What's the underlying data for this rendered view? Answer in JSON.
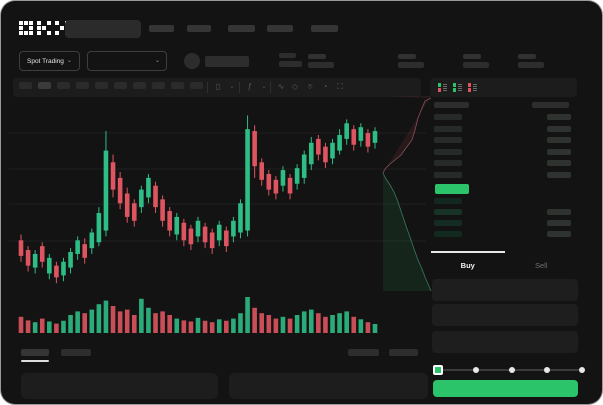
{
  "colors": {
    "accent_green": "#2bc46a",
    "candle_up": "#2ebd85",
    "candle_down": "#dd5560",
    "depth_ask_line": "#8a5156",
    "depth_bid_line": "#3c7a60",
    "skeleton": "#2c2d2c"
  },
  "header": {
    "logo_text": "OKX",
    "logo_blocks": [
      [
        [
          1,
          1,
          1
        ],
        [
          1,
          0,
          1
        ],
        [
          1,
          1,
          1
        ]
      ],
      [
        [
          1,
          0,
          1
        ],
        [
          1,
          1,
          0
        ],
        [
          1,
          0,
          1
        ]
      ],
      [
        [
          1,
          0,
          1
        ],
        [
          0,
          1,
          0
        ],
        [
          1,
          0,
          1
        ]
      ]
    ],
    "nav_placeholder_count": 5
  },
  "market_bar": {
    "pair_selector_label": "Spot Trading",
    "pair_selector_chevron": "⌄",
    "dropdown_chevron": "⌄",
    "stat_placeholder_count": 4
  },
  "toolbar": {
    "timeframe_slot_count": 10,
    "icons": {
      "candles": "▯",
      "chevron": "⌄",
      "indicators": "ƒ",
      "line_tool": "∿",
      "draw_tool": "◇",
      "camera": "⌾",
      "settings": "◔",
      "fullscreen": "⛶"
    }
  },
  "chart_data": {
    "type": "candlestick",
    "title": "",
    "xlabel": "",
    "ylabel": "",
    "price_scale": [
      0,
      100
    ],
    "grid": true,
    "gridlines_y_local": [
      37,
      73,
      108,
      145
    ],
    "up_color": "#2ebd85",
    "down_color": "#dd5560",
    "candles_ohlc": [
      [
        26,
        29,
        15,
        18
      ],
      [
        21,
        23,
        10,
        13
      ],
      [
        12,
        21,
        9,
        19
      ],
      [
        23,
        25,
        12,
        15
      ],
      [
        9,
        19,
        6,
        17
      ],
      [
        13,
        15,
        4,
        7
      ],
      [
        8,
        17,
        5,
        15
      ],
      [
        12,
        22,
        9,
        20
      ],
      [
        19,
        28,
        16,
        26
      ],
      [
        24,
        27,
        14,
        17
      ],
      [
        22,
        32,
        19,
        30
      ],
      [
        25,
        43,
        23,
        40
      ],
      [
        31,
        82,
        28,
        72
      ],
      [
        66,
        70,
        48,
        52
      ],
      [
        58,
        61,
        42,
        45
      ],
      [
        50,
        53,
        35,
        38
      ],
      [
        45,
        47,
        33,
        36
      ],
      [
        43,
        54,
        40,
        52
      ],
      [
        48,
        60,
        45,
        58
      ],
      [
        54,
        56,
        40,
        43
      ],
      [
        47,
        49,
        33,
        36
      ],
      [
        41,
        43,
        28,
        31
      ],
      [
        29,
        40,
        26,
        38
      ],
      [
        35,
        37,
        23,
        26
      ],
      [
        32,
        34,
        21,
        24
      ],
      [
        28,
        38,
        25,
        36
      ],
      [
        33,
        35,
        22,
        25
      ],
      [
        30,
        32,
        19,
        22
      ],
      [
        26,
        36,
        23,
        34
      ],
      [
        31,
        33,
        20,
        23
      ],
      [
        28,
        38,
        25,
        36
      ],
      [
        30,
        47,
        27,
        45
      ],
      [
        31,
        90,
        28,
        83
      ],
      [
        82,
        85,
        58,
        64
      ],
      [
        66,
        68,
        54,
        57
      ],
      [
        60,
        62,
        49,
        52
      ],
      [
        57,
        59,
        47,
        50
      ],
      [
        54,
        64,
        51,
        62
      ],
      [
        58,
        60,
        47,
        50
      ],
      [
        55,
        65,
        52,
        63
      ],
      [
        58,
        72,
        55,
        70
      ],
      [
        65,
        79,
        62,
        76
      ],
      [
        78,
        80,
        67,
        70
      ],
      [
        74,
        76,
        63,
        66
      ],
      [
        68,
        78,
        65,
        76
      ],
      [
        72,
        83,
        70,
        80
      ],
      [
        78,
        88,
        75,
        86
      ],
      [
        83,
        85,
        72,
        75
      ],
      [
        77,
        86,
        74,
        84
      ],
      [
        81,
        83,
        71,
        74
      ],
      [
        76,
        84,
        73,
        82
      ]
    ],
    "volume": [
      45,
      35,
      30,
      40,
      32,
      26,
      34,
      50,
      60,
      55,
      65,
      80,
      90,
      75,
      60,
      65,
      50,
      95,
      70,
      55,
      60,
      50,
      40,
      35,
      32,
      42,
      34,
      30,
      38,
      34,
      40,
      55,
      100,
      70,
      55,
      50,
      40,
      45,
      40,
      50,
      60,
      65,
      55,
      45,
      50,
      55,
      60,
      45,
      38,
      30,
      25
    ],
    "depth": {
      "ask_points": [
        [
          49,
          2
        ],
        [
          43,
          5
        ],
        [
          40,
          12
        ],
        [
          36,
          22
        ],
        [
          33,
          34
        ],
        [
          30,
          44
        ],
        [
          24,
          52
        ],
        [
          19,
          59
        ],
        [
          13,
          64
        ],
        [
          8,
          68
        ],
        [
          3,
          73
        ],
        [
          1,
          77
        ]
      ],
      "bid_points": [
        [
          1,
          77
        ],
        [
          4,
          83
        ],
        [
          8,
          89
        ],
        [
          12,
          96
        ],
        [
          16,
          106
        ],
        [
          20,
          118
        ],
        [
          24,
          130
        ],
        [
          28,
          141
        ],
        [
          32,
          153
        ],
        [
          36,
          164
        ],
        [
          40,
          173
        ],
        [
          43,
          181
        ],
        [
          46,
          188
        ],
        [
          49,
          195
        ]
      ],
      "ask_fill": "rgba(221,85,96,0.10)",
      "bid_fill": "rgba(43,196,106,0.10)"
    }
  },
  "order_book": {
    "view_toggles": [
      {
        "name": "split-view",
        "top": "#2bc46a",
        "bottom": "#dd5560"
      },
      {
        "name": "bids-view",
        "top": "#2bc46a",
        "bottom": "#2bc46a"
      },
      {
        "name": "asks-view",
        "top": "#dd5560",
        "bottom": "#dd5560"
      }
    ],
    "asks": [
      {
        "left": true,
        "right": true
      },
      {
        "left": true,
        "right": true
      },
      {
        "left": true,
        "right": true
      },
      {
        "left": true,
        "right": true
      },
      {
        "left": true,
        "right": true
      },
      {
        "left": true,
        "right": true
      }
    ],
    "bids": [
      {
        "left": true,
        "right": false
      },
      {
        "left": true,
        "right": true
      },
      {
        "left": true,
        "right": true
      },
      {
        "left": true,
        "right": true
      }
    ],
    "ask_left_color": "#262a28",
    "bid_left_colors": [
      "#13281f",
      "#173226",
      "#142c21",
      "#132a20"
    ],
    "right_bar_color": "#2f3330",
    "last_price_color": "#2bc46a"
  },
  "trade_panel": {
    "tabs": [
      {
        "label": "Buy",
        "active": true
      },
      {
        "label": "Sell",
        "active": false
      }
    ],
    "form_box_count": 3,
    "slider": {
      "stops": 5,
      "active_stop": 0,
      "handle_fill": "#2bc46a"
    },
    "submit_color": "#2bc46a"
  },
  "bottom_bar": {
    "left_tab_count": 2,
    "active_tab_index": 0,
    "right_placeholder_count": 2,
    "panel_count": 2
  }
}
